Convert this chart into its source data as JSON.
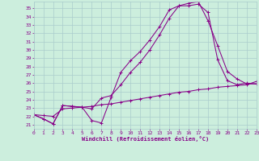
{
  "xlabel": "Windchill (Refroidissement éolien,°C)",
  "bg_color": "#cceedd",
  "line_color": "#880088",
  "grid_color": "#aacccc",
  "x_ticks": [
    0,
    1,
    2,
    3,
    4,
    5,
    6,
    7,
    8,
    9,
    10,
    11,
    12,
    13,
    14,
    15,
    16,
    17,
    18,
    19,
    20,
    21,
    22,
    23
  ],
  "y_ticks": [
    21,
    22,
    23,
    24,
    25,
    26,
    27,
    28,
    29,
    30,
    31,
    32,
    33,
    34,
    35
  ],
  "ylim": [
    20.5,
    35.8
  ],
  "xlim": [
    0,
    23
  ],
  "line1_x": [
    0,
    1,
    2,
    3,
    4,
    5,
    6,
    7,
    8,
    9,
    10,
    11,
    12,
    13,
    14,
    15,
    16,
    17,
    18,
    19,
    20,
    21,
    22,
    23
  ],
  "line1_y": [
    22.2,
    21.7,
    21.1,
    23.3,
    23.2,
    23.1,
    21.5,
    21.2,
    24.3,
    27.3,
    28.7,
    29.8,
    31.2,
    32.8,
    34.8,
    35.3,
    35.3,
    35.5,
    34.5,
    28.8,
    26.3,
    25.8,
    26.0,
    25.9
  ],
  "line2_x": [
    0,
    1,
    2,
    3,
    4,
    5,
    6,
    7,
    8,
    9,
    10,
    11,
    12,
    13,
    14,
    15,
    16,
    17,
    18,
    19,
    20,
    21,
    22,
    23
  ],
  "line2_y": [
    22.2,
    21.7,
    21.1,
    23.3,
    23.2,
    23.1,
    22.9,
    24.2,
    24.5,
    25.8,
    27.3,
    28.5,
    30.0,
    31.8,
    33.8,
    35.3,
    35.6,
    35.8,
    33.5,
    30.5,
    27.4,
    26.5,
    25.9,
    25.9
  ],
  "line3_x": [
    0,
    1,
    2,
    3,
    4,
    5,
    6,
    7,
    8,
    9,
    10,
    11,
    12,
    13,
    14,
    15,
    16,
    17,
    18,
    19,
    20,
    21,
    22,
    23
  ],
  "line3_y": [
    22.2,
    22.1,
    22.0,
    22.9,
    23.0,
    23.1,
    23.2,
    23.4,
    23.5,
    23.7,
    23.9,
    24.1,
    24.3,
    24.5,
    24.7,
    24.9,
    25.0,
    25.2,
    25.3,
    25.5,
    25.6,
    25.7,
    25.8,
    26.2
  ]
}
